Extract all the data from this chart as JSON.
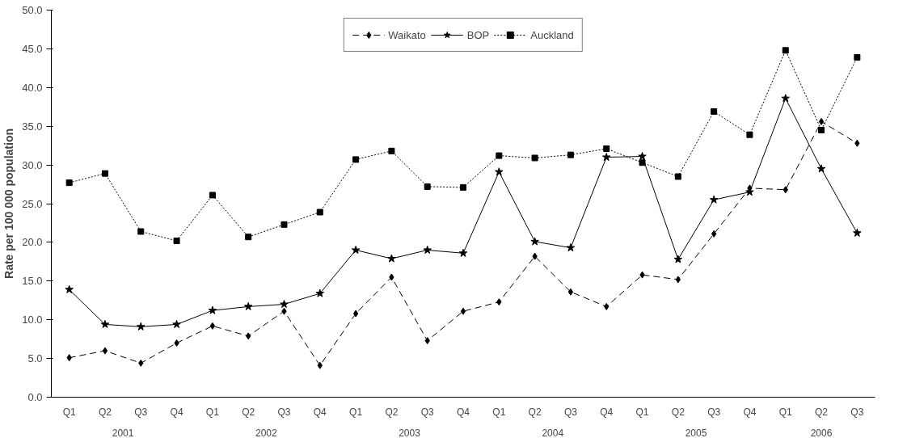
{
  "chart_data": {
    "type": "line",
    "ylabel": "Rate per 100 000 population",
    "categories": [
      "Q1",
      "Q2",
      "Q3",
      "Q4",
      "Q1",
      "Q2",
      "Q3",
      "Q4",
      "Q1",
      "Q2",
      "Q3",
      "Q4",
      "Q1",
      "Q2",
      "Q3",
      "Q4",
      "Q1",
      "Q2",
      "Q3",
      "Q4",
      "Q1",
      "Q2",
      "Q3"
    ],
    "annotations": [
      "2001",
      "2002",
      "2003",
      "2004",
      "2005",
      "2006"
    ],
    "ylim": [
      0,
      50
    ],
    "yticks": [
      {
        "value": 0,
        "label": "0.0"
      },
      {
        "value": 5,
        "label": "5.0"
      },
      {
        "value": 10,
        "label": "10.0"
      },
      {
        "value": 15,
        "label": "15.0"
      },
      {
        "value": 20,
        "label": "20.0"
      },
      {
        "value": 25,
        "label": "25.0"
      },
      {
        "value": 30,
        "label": "30.0"
      },
      {
        "value": 35,
        "label": "35.0"
      },
      {
        "value": 40,
        "label": "40.0"
      },
      {
        "value": 45,
        "label": "45.0"
      },
      {
        "value": 50,
        "label": "50.0"
      }
    ],
    "grid": false,
    "legend": "top",
    "series": [
      {
        "name": "Waikato",
        "color": "#000000",
        "marker": "diamond",
        "line_style": "dashed",
        "values": [
          5.1,
          6.0,
          4.4,
          7.0,
          9.2,
          7.9,
          11.1,
          4.1,
          10.8,
          15.5,
          7.3,
          11.1,
          12.3,
          18.2,
          13.6,
          11.7,
          15.8,
          15.2,
          21.1,
          27.0,
          26.8,
          35.6,
          32.8
        ]
      },
      {
        "name": "BOP",
        "color": "#000000",
        "marker": "star",
        "line_style": "solid",
        "values": [
          13.9,
          9.4,
          9.1,
          9.4,
          11.2,
          11.7,
          12.0,
          13.4,
          19.0,
          17.9,
          19.0,
          18.6,
          29.1,
          20.1,
          19.3,
          31.0,
          31.1,
          17.8,
          25.5,
          26.5,
          38.6,
          29.5,
          21.2
        ]
      },
      {
        "name": "Auckland",
        "color": "#000000",
        "marker": "square",
        "line_style": "dotted",
        "values": [
          27.7,
          28.9,
          21.4,
          20.2,
          26.1,
          20.7,
          22.3,
          23.9,
          30.7,
          31.8,
          27.2,
          27.1,
          31.2,
          30.9,
          31.3,
          32.1,
          30.3,
          28.5,
          36.9,
          33.9,
          44.8,
          34.5,
          43.9
        ]
      }
    ]
  }
}
